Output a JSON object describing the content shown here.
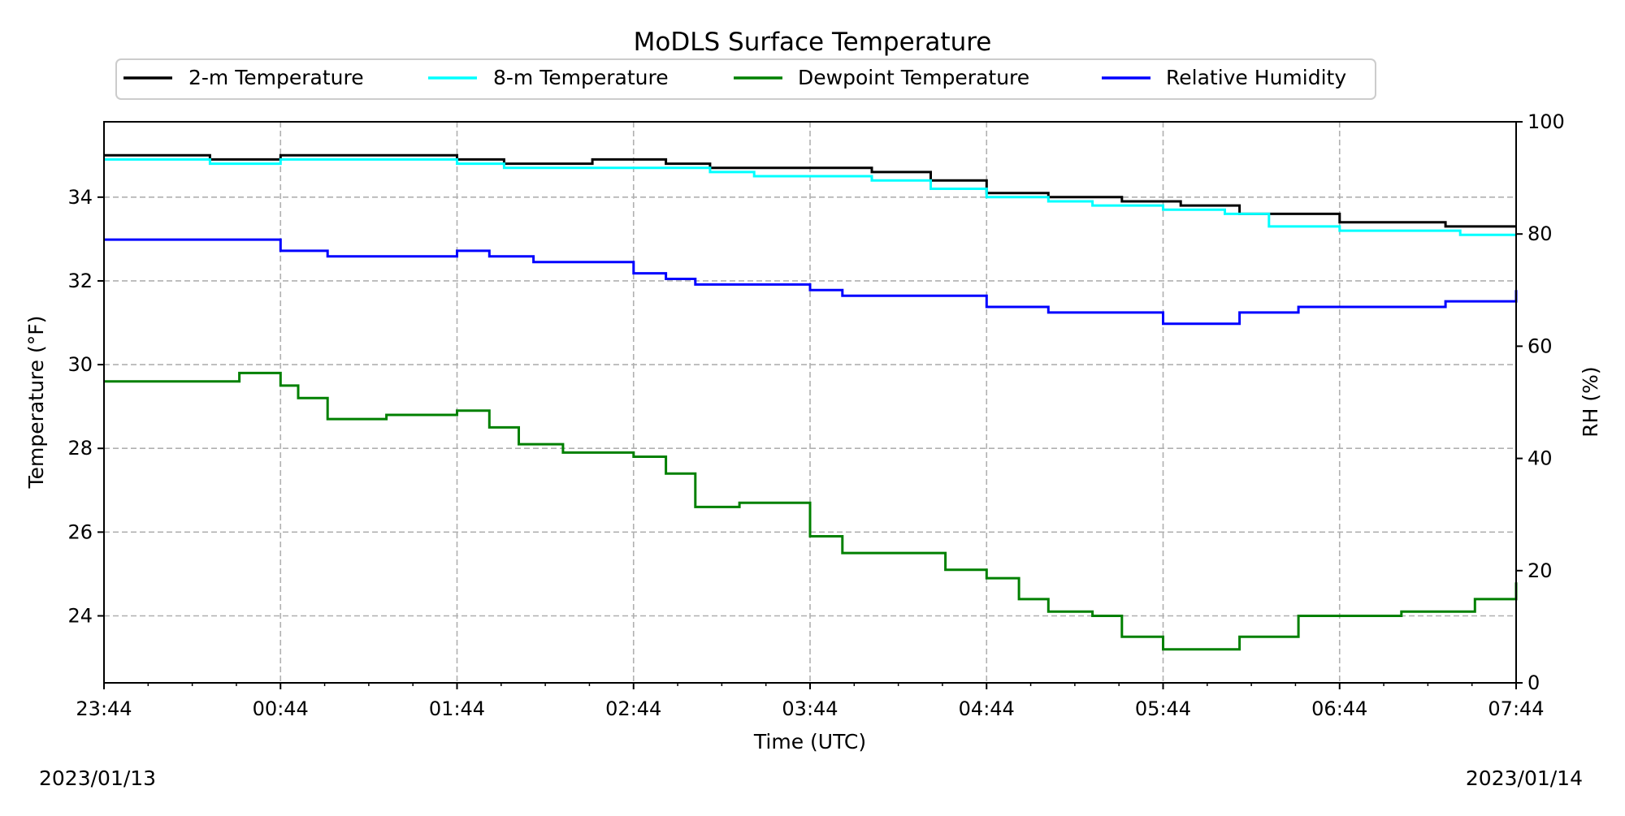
{
  "chart_data": {
    "type": "line",
    "title": "MoDLS Surface Temperature",
    "xlabel": "Time (UTC)",
    "ylabel_left": "Temperature ($^\\circ$F)",
    "ylabel_left_display": "Temperature (°F)",
    "ylabel_right": "RH (%)",
    "x_ticks": [
      "23:44",
      "00:44",
      "01:44",
      "02:44",
      "03:44",
      "04:44",
      "05:44",
      "06:44",
      "07:44"
    ],
    "x_range": [
      "23:44",
      "07:44"
    ],
    "y_left": {
      "range": [
        22.4,
        35.8
      ],
      "ticks": [
        24,
        26,
        28,
        30,
        32,
        34
      ]
    },
    "y_right": {
      "range": [
        0,
        100
      ],
      "ticks": [
        0,
        20,
        40,
        60,
        80,
        100
      ]
    },
    "start_date": "2023/01/13",
    "end_date": "2023/01/14",
    "grid": true,
    "legend_position": "top",
    "series": [
      {
        "name": "2-m Temperature",
        "color": "#000000",
        "axis": "left",
        "x": [
          "23:44",
          "00:05",
          "00:20",
          "00:44",
          "01:00",
          "01:44",
          "02:00",
          "02:30",
          "02:55",
          "03:10",
          "03:44",
          "04:05",
          "04:25",
          "04:44",
          "05:05",
          "05:30",
          "05:50",
          "06:10",
          "06:44",
          "07:00",
          "07:20",
          "07:44"
        ],
        "y": [
          35.0,
          35.0,
          34.9,
          35.0,
          35.0,
          34.9,
          34.8,
          34.9,
          34.8,
          34.7,
          34.7,
          34.6,
          34.4,
          34.1,
          34.0,
          33.9,
          33.8,
          33.6,
          33.4,
          33.4,
          33.3,
          33.3
        ]
      },
      {
        "name": "8-m Temperature",
        "color": "#00ffff",
        "axis": "left",
        "x": [
          "23:44",
          "00:05",
          "00:20",
          "00:44",
          "01:00",
          "01:44",
          "02:00",
          "02:30",
          "02:55",
          "03:10",
          "03:25",
          "03:44",
          "04:05",
          "04:25",
          "04:44",
          "05:05",
          "05:20",
          "05:44",
          "06:05",
          "06:20",
          "06:44",
          "07:00",
          "07:25",
          "07:44"
        ],
        "y": [
          34.9,
          34.9,
          34.8,
          34.9,
          34.9,
          34.8,
          34.7,
          34.7,
          34.7,
          34.6,
          34.5,
          34.5,
          34.4,
          34.2,
          34.0,
          33.9,
          33.8,
          33.7,
          33.6,
          33.3,
          33.2,
          33.2,
          33.1,
          33.1
        ]
      },
      {
        "name": "Dewpoint Temperature",
        "color": "#008000",
        "axis": "left",
        "x": [
          "23:44",
          "00:05",
          "00:20",
          "00:30",
          "00:44",
          "00:50",
          "01:00",
          "01:20",
          "01:44",
          "01:55",
          "02:05",
          "02:20",
          "02:44",
          "02:55",
          "03:05",
          "03:20",
          "03:44",
          "03:55",
          "04:10",
          "04:30",
          "04:44",
          "04:55",
          "05:05",
          "05:20",
          "05:30",
          "05:44",
          "05:55",
          "06:10",
          "06:30",
          "06:44",
          "07:05",
          "07:30",
          "07:44"
        ],
        "y": [
          29.6,
          29.6,
          29.6,
          29.8,
          29.5,
          29.2,
          28.7,
          28.8,
          28.9,
          28.5,
          28.1,
          27.9,
          27.8,
          27.4,
          26.6,
          26.7,
          25.9,
          25.5,
          25.5,
          25.1,
          24.9,
          24.4,
          24.1,
          24.0,
          23.5,
          23.2,
          23.2,
          23.5,
          24.0,
          24.0,
          24.1,
          24.4,
          24.8
        ]
      },
      {
        "name": "Relative Humidity",
        "color": "#0000ff",
        "axis": "right",
        "x": [
          "23:44",
          "00:05",
          "00:20",
          "00:44",
          "01:00",
          "01:20",
          "01:44",
          "01:55",
          "02:10",
          "02:30",
          "02:44",
          "02:55",
          "03:05",
          "03:20",
          "03:44",
          "03:55",
          "04:10",
          "04:30",
          "04:44",
          "05:05",
          "05:20",
          "05:44",
          "05:55",
          "06:10",
          "06:30",
          "06:44",
          "07:00",
          "07:20",
          "07:44"
        ],
        "y": [
          79,
          79,
          79,
          77,
          76,
          76,
          77,
          76,
          75,
          75,
          73,
          72,
          71,
          71,
          70,
          69,
          69,
          69,
          67,
          66,
          66,
          64,
          64,
          66,
          67,
          67,
          67,
          68,
          70
        ]
      }
    ]
  }
}
